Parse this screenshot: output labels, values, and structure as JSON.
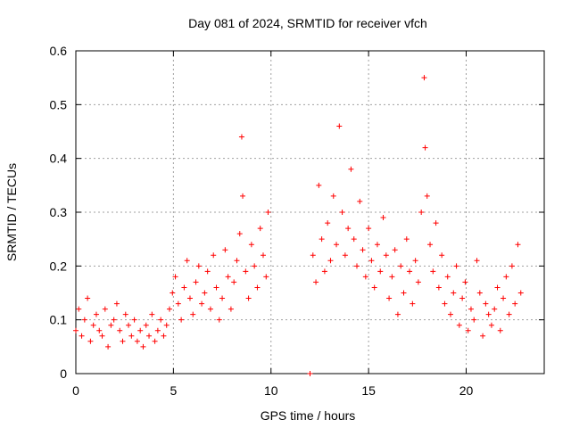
{
  "chart_data": {
    "type": "scatter",
    "title": "Day 081 of 2024, SRMTID for receiver vfch",
    "xlabel": "GPS time / hours",
    "ylabel": "SRMTID / TECUs",
    "xlim": [
      0,
      24
    ],
    "ylim": [
      0,
      0.6
    ],
    "xticks": [
      0,
      5,
      10,
      15,
      20
    ],
    "xtick_labels": [
      "0",
      "5",
      "10",
      "15",
      "20"
    ],
    "yticks": [
      0,
      0.1,
      0.2,
      0.3,
      0.4,
      0.5,
      0.6
    ],
    "ytick_labels": [
      "0",
      "0.1",
      "0.2",
      "0.3",
      "0.4",
      "0.5",
      "0.6"
    ],
    "grid": true,
    "marker": "+",
    "series": [
      {
        "name": "SRMTID",
        "color": "#ff0000",
        "x": [
          0.0,
          0.15,
          0.3,
          0.45,
          0.6,
          0.75,
          0.9,
          1.05,
          1.2,
          1.35,
          1.5,
          1.65,
          1.8,
          1.95,
          2.1,
          2.25,
          2.4,
          2.55,
          2.7,
          2.85,
          3.0,
          3.15,
          3.3,
          3.45,
          3.6,
          3.75,
          3.9,
          4.05,
          4.2,
          4.35,
          4.5,
          4.65,
          4.8,
          4.95,
          5.1,
          5.25,
          5.4,
          5.55,
          5.7,
          5.85,
          6.0,
          6.15,
          6.3,
          6.45,
          6.6,
          6.75,
          6.9,
          7.05,
          7.2,
          7.35,
          7.5,
          7.65,
          7.8,
          7.95,
          8.1,
          8.25,
          8.4,
          8.5,
          8.55,
          8.7,
          8.85,
          9.0,
          9.15,
          9.3,
          9.45,
          9.6,
          9.75,
          9.85,
          12.0,
          12.15,
          12.3,
          12.45,
          12.6,
          12.75,
          12.9,
          13.05,
          13.2,
          13.35,
          13.5,
          13.65,
          13.8,
          13.95,
          14.1,
          14.25,
          14.4,
          14.55,
          14.7,
          14.85,
          15.0,
          15.15,
          15.3,
          15.45,
          15.6,
          15.75,
          15.9,
          16.05,
          16.2,
          16.35,
          16.5,
          16.65,
          16.8,
          16.95,
          17.1,
          17.25,
          17.4,
          17.55,
          17.7,
          17.85,
          17.9,
          18.0,
          18.15,
          18.3,
          18.45,
          18.6,
          18.75,
          18.9,
          19.05,
          19.2,
          19.35,
          19.5,
          19.65,
          19.8,
          19.95,
          20.1,
          20.25,
          20.4,
          20.55,
          20.7,
          20.85,
          21.0,
          21.15,
          21.3,
          21.45,
          21.6,
          21.75,
          21.9,
          22.05,
          22.2,
          22.35,
          22.5,
          22.65,
          22.8
        ],
        "y": [
          0.08,
          0.12,
          0.07,
          0.1,
          0.14,
          0.06,
          0.09,
          0.11,
          0.08,
          0.07,
          0.12,
          0.05,
          0.09,
          0.1,
          0.13,
          0.08,
          0.06,
          0.11,
          0.09,
          0.07,
          0.1,
          0.06,
          0.08,
          0.05,
          0.09,
          0.07,
          0.11,
          0.06,
          0.08,
          0.1,
          0.07,
          0.09,
          0.12,
          0.15,
          0.18,
          0.13,
          0.1,
          0.16,
          0.21,
          0.14,
          0.11,
          0.17,
          0.2,
          0.13,
          0.15,
          0.19,
          0.12,
          0.22,
          0.16,
          0.1,
          0.14,
          0.23,
          0.18,
          0.12,
          0.17,
          0.21,
          0.26,
          0.44,
          0.33,
          0.19,
          0.14,
          0.24,
          0.2,
          0.16,
          0.27,
          0.22,
          0.18,
          0.3,
          0.0,
          0.22,
          0.17,
          0.35,
          0.25,
          0.19,
          0.28,
          0.21,
          0.33,
          0.24,
          0.46,
          0.3,
          0.22,
          0.27,
          0.38,
          0.25,
          0.2,
          0.32,
          0.23,
          0.18,
          0.27,
          0.21,
          0.16,
          0.24,
          0.19,
          0.29,
          0.22,
          0.14,
          0.18,
          0.23,
          0.11,
          0.2,
          0.15,
          0.25,
          0.19,
          0.13,
          0.21,
          0.17,
          0.3,
          0.55,
          0.42,
          0.33,
          0.24,
          0.19,
          0.28,
          0.16,
          0.22,
          0.13,
          0.18,
          0.11,
          0.15,
          0.2,
          0.09,
          0.14,
          0.17,
          0.08,
          0.12,
          0.1,
          0.21,
          0.15,
          0.07,
          0.13,
          0.11,
          0.09,
          0.12,
          0.16,
          0.08,
          0.14,
          0.18,
          0.11,
          0.2,
          0.13,
          0.24,
          0.15
        ]
      }
    ]
  }
}
